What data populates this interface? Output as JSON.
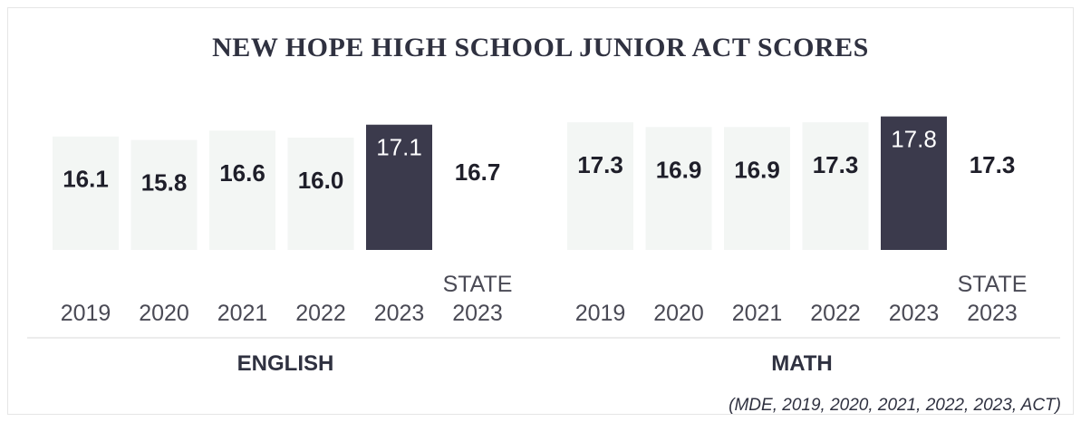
{
  "title": "NEW HOPE HIGH SCHOOL JUNIOR ACT SCORES",
  "source": "(MDE, 2019, 2020, 2021, 2022, 2023, ACT)",
  "colors": {
    "bar": "#f3f6f4",
    "highlight": "#3b3a4c",
    "text": "#1f1f2a",
    "axis_text": "#4a4a55",
    "highlight_text": "#ffffff"
  },
  "chart_data": [
    {
      "type": "bar",
      "title": "ENGLISH",
      "categories": [
        "2019",
        "2020",
        "2021",
        "2022",
        "2023",
        "STATE 2023"
      ],
      "values": [
        16.1,
        15.8,
        16.6,
        16.0,
        17.1,
        16.7
      ],
      "labels": [
        "16.1",
        "15.8",
        "16.6",
        "16.0",
        "17.1",
        "16.7"
      ],
      "highlight_index": 4,
      "state_index": 5
    },
    {
      "type": "bar",
      "title": "MATH",
      "categories": [
        "2019",
        "2020",
        "2021",
        "2022",
        "2023",
        "STATE 2023"
      ],
      "values": [
        17.3,
        16.9,
        16.9,
        17.3,
        17.8,
        17.3
      ],
      "labels": [
        "17.3",
        "16.9",
        "16.9",
        "17.3",
        "17.8",
        "17.3"
      ],
      "highlight_index": 4,
      "state_index": 5
    }
  ]
}
